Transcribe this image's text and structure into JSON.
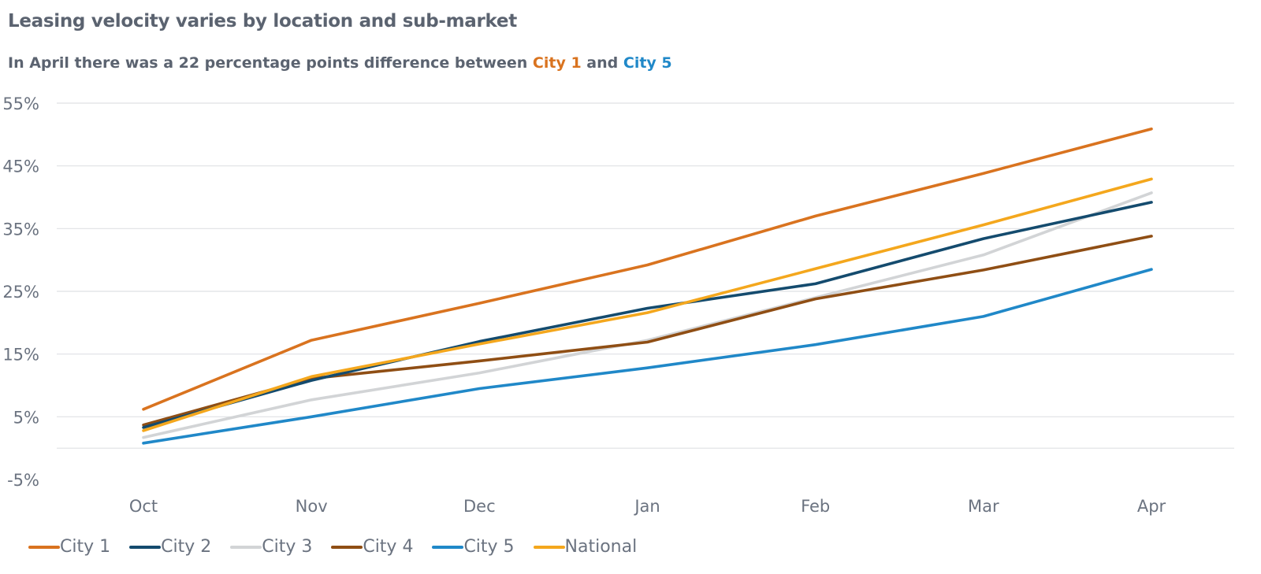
{
  "header": {
    "title": "Leasing velocity varies by location and sub-market",
    "subtitle_prefix": "In April there was a 22 percentage points difference between",
    "subtitle_highlight_1": "City 1",
    "subtitle_mid": "and",
    "subtitle_highlight_2": "City 5"
  },
  "chart_data": {
    "type": "line",
    "title": "Leasing velocity varies by location and sub-market",
    "categories": [
      "Oct",
      "Nov",
      "Dec",
      "Jan",
      "Feb",
      "Mar",
      "Apr"
    ],
    "y_ticks": [
      "55%",
      "45%",
      "35%",
      "25%",
      "15%",
      "5%",
      "-5%"
    ],
    "ylim": [
      -5,
      55
    ],
    "y_tick_values": [
      55,
      45,
      35,
      25,
      15,
      5,
      -5
    ],
    "grid": true,
    "legend_position": "bottom-left",
    "series": [
      {
        "name": "City 1",
        "color": "#d9731f",
        "values": [
          6.2,
          17.2,
          23.1,
          29.2,
          37.0,
          43.8,
          50.9
        ]
      },
      {
        "name": "City 2",
        "color": "#144b6e",
        "values": [
          3.3,
          10.8,
          17.0,
          22.3,
          26.2,
          33.4,
          39.2
        ]
      },
      {
        "name": "City 3",
        "color": "#d2d4d6",
        "values": [
          1.7,
          7.7,
          12.0,
          17.2,
          24.0,
          30.8,
          40.7
        ]
      },
      {
        "name": "City 4",
        "color": "#8f4e14",
        "values": [
          3.7,
          11.1,
          13.9,
          16.9,
          23.8,
          28.4,
          33.8
        ]
      },
      {
        "name": "City 5",
        "color": "#2088c8",
        "values": [
          0.8,
          5.0,
          9.5,
          12.8,
          16.5,
          21.0,
          28.5
        ]
      },
      {
        "name": "National",
        "color": "#f4a71d",
        "values": [
          2.8,
          11.4,
          16.6,
          21.6,
          28.6,
          35.6,
          42.9
        ]
      }
    ]
  }
}
